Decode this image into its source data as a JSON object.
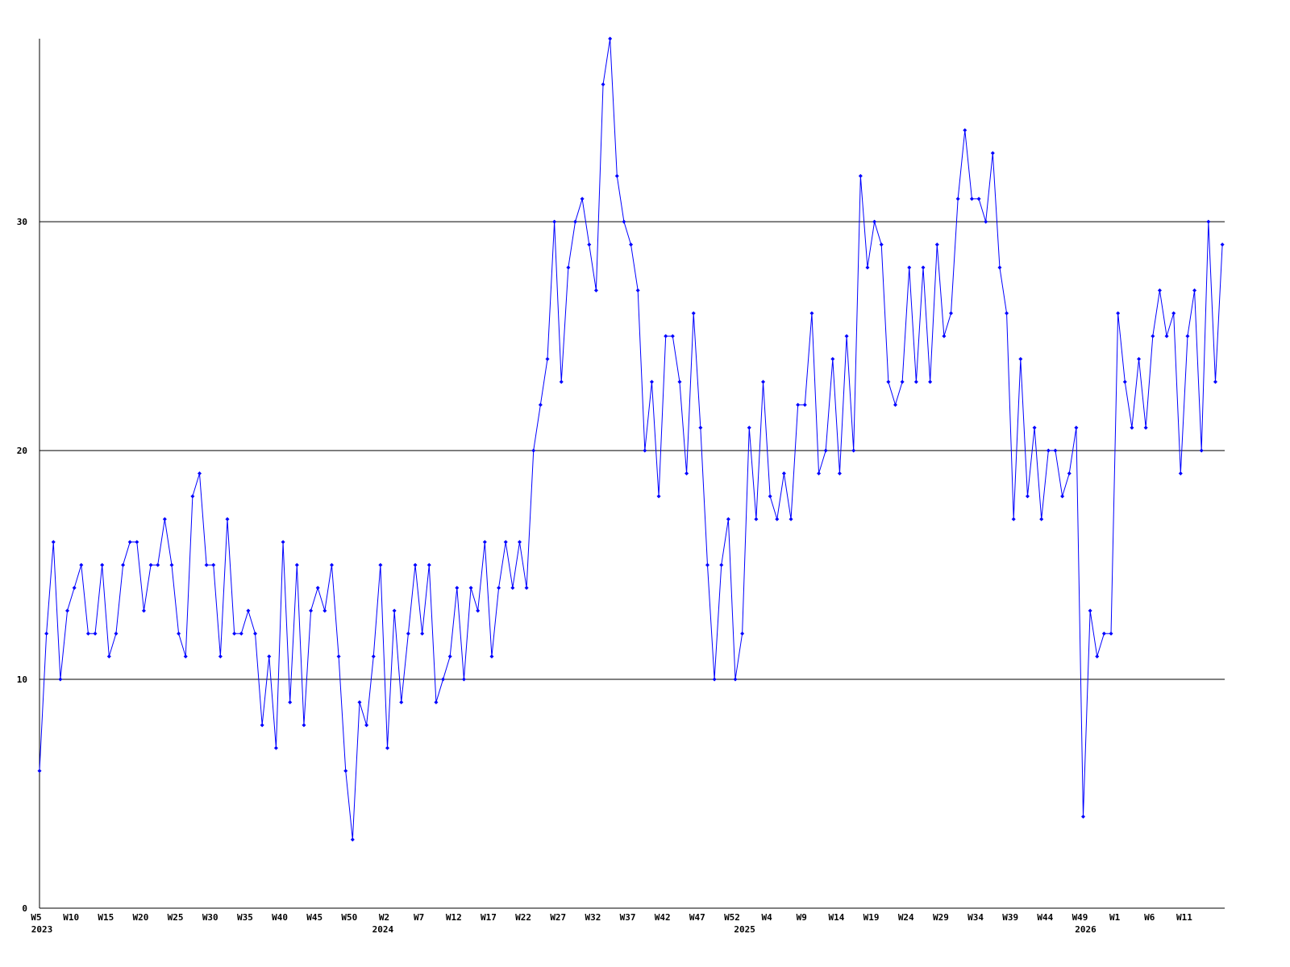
{
  "chart_data": {
    "type": "line",
    "categories": [
      "W5",
      null,
      null,
      null,
      null,
      "W10",
      null,
      null,
      null,
      null,
      "W15",
      null,
      null,
      null,
      null,
      "W20",
      null,
      null,
      null,
      null,
      "W25",
      null,
      null,
      null,
      null,
      "W30",
      null,
      null,
      null,
      null,
      "W35",
      null,
      null,
      null,
      null,
      "W40",
      null,
      null,
      null,
      null,
      "W45",
      null,
      null,
      null,
      null,
      "W50",
      null,
      null,
      null,
      null,
      "W2",
      null,
      null,
      null,
      null,
      "W7",
      null,
      null,
      null,
      null,
      "W12",
      null,
      null,
      null,
      null,
      "W17",
      null,
      null,
      null,
      null,
      "W22",
      null,
      null,
      null,
      null,
      "W27",
      null,
      null,
      null,
      null,
      "W32",
      null,
      null,
      null,
      null,
      "W37",
      null,
      null,
      null,
      null,
      "W42",
      null,
      null,
      null,
      null,
      "W47",
      null,
      null,
      null,
      null,
      "W52",
      null,
      null,
      null,
      null,
      "W4",
      null,
      null,
      null,
      null,
      "W9",
      null,
      null,
      null,
      null,
      "W14",
      null,
      null,
      null,
      null,
      "W19",
      null,
      null,
      null,
      null,
      "W24",
      null,
      null,
      null,
      null,
      "W29",
      null,
      null,
      null,
      null,
      "W34",
      null,
      null,
      null,
      null,
      "W39",
      null,
      null,
      null,
      null,
      "W44",
      null,
      null,
      null,
      null,
      "W49",
      null,
      null,
      null,
      null,
      "W1",
      null,
      null,
      null,
      null,
      "W6",
      null,
      null,
      null,
      null,
      "W11",
      null,
      null,
      null,
      null,
      null
    ],
    "years": [
      "2023",
      null,
      null,
      null,
      null,
      null,
      null,
      null,
      null,
      null,
      null,
      null,
      null,
      null,
      null,
      null,
      null,
      null,
      null,
      null,
      null,
      null,
      null,
      null,
      null,
      null,
      null,
      null,
      null,
      null,
      null,
      null,
      null,
      null,
      null,
      null,
      null,
      null,
      null,
      null,
      null,
      null,
      null,
      null,
      null,
      null,
      null,
      null,
      null,
      "2024",
      null,
      null,
      null,
      null,
      null,
      null,
      null,
      null,
      null,
      null,
      null,
      null,
      null,
      null,
      null,
      null,
      null,
      null,
      null,
      null,
      null,
      null,
      null,
      null,
      null,
      null,
      null,
      null,
      null,
      null,
      null,
      null,
      null,
      null,
      null,
      null,
      null,
      null,
      null,
      null,
      null,
      null,
      null,
      null,
      null,
      null,
      null,
      null,
      null,
      null,
      null,
      "2025",
      null,
      null,
      null,
      null,
      null,
      null,
      null,
      null,
      null,
      null,
      null,
      null,
      null,
      null,
      null,
      null,
      null,
      null,
      null,
      null,
      null,
      null,
      null,
      null,
      null,
      null,
      null,
      null,
      null,
      null,
      null,
      null,
      null,
      null,
      null,
      null,
      null,
      null,
      null,
      null,
      null,
      null,
      null,
      null,
      null,
      null,
      null,
      null,
      "2026",
      null,
      null,
      null,
      null,
      null,
      null,
      null,
      null,
      null,
      null,
      null,
      null,
      null,
      null,
      null,
      null
    ],
    "series": [
      {
        "color": "#0000ff",
        "values": [
          6,
          12,
          16,
          10,
          13,
          14,
          15,
          12,
          12,
          15,
          11,
          12,
          15,
          16,
          16,
          13,
          15,
          15,
          17,
          15,
          12,
          11,
          18,
          19,
          15,
          15,
          11,
          17,
          12,
          12,
          13,
          12,
          8,
          11,
          7,
          16,
          9,
          15,
          8,
          13,
          14,
          13,
          15,
          11,
          6,
          3,
          9,
          8,
          11,
          15,
          7,
          13,
          9,
          12,
          15,
          12,
          15,
          9,
          10,
          11,
          14,
          10,
          14,
          13,
          16,
          11,
          14,
          16,
          14,
          16,
          14,
          20,
          22,
          24,
          30,
          23,
          28,
          30,
          31,
          29,
          27,
          36,
          38,
          32,
          30,
          29,
          27,
          20,
          23,
          18,
          25,
          25,
          23,
          19,
          26,
          21,
          15,
          10,
          15,
          17,
          10,
          12,
          21,
          17,
          23,
          18,
          17,
          19,
          17,
          22,
          22,
          26,
          19,
          20,
          24,
          19,
          25,
          20,
          32,
          28,
          30,
          29,
          23,
          22,
          23,
          28,
          23,
          28,
          23,
          29,
          25,
          26,
          31,
          34,
          31,
          31,
          30,
          33,
          28,
          26,
          17,
          24,
          18,
          21,
          17,
          20,
          20,
          18,
          19,
          21,
          4,
          13,
          11,
          12,
          12,
          26,
          23,
          21,
          24,
          21,
          25,
          27,
          25,
          26,
          19,
          25,
          27,
          20,
          30,
          23,
          29
        ]
      }
    ],
    "ylim": [
      0,
      38
    ],
    "yticks": [
      0,
      10,
      20,
      30
    ],
    "grid": true
  }
}
